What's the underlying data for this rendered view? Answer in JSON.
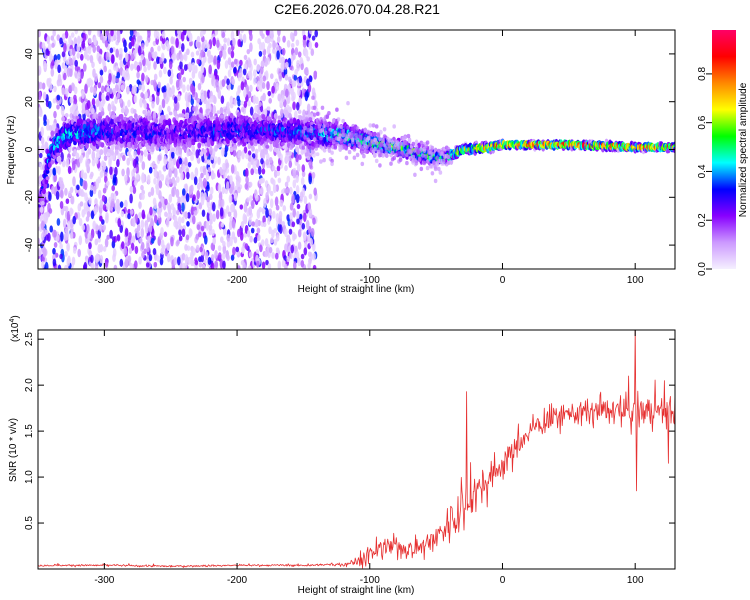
{
  "title": "C2E6.2026.070.04.28.R21",
  "chart_data": [
    {
      "type": "heatmap",
      "name": "spectrogram",
      "xlabel": "Height of straight line (km)",
      "ylabel": "Frequency (Hz)",
      "xlim": [
        -350,
        130
      ],
      "ylim": [
        -50,
        50
      ],
      "x_ticks": [
        -300,
        -200,
        -100,
        0,
        100
      ],
      "x_tick_labels": [
        "-300",
        "-200",
        "-100",
        "0",
        "100"
      ],
      "y_ticks": [
        -40,
        -20,
        0,
        20,
        40
      ],
      "y_tick_labels": [
        "-40",
        "-20",
        "0",
        "20",
        "40"
      ],
      "ridge": {
        "x": [
          -350,
          -340,
          -330,
          -300,
          -250,
          -200,
          -150,
          -120,
          -100,
          -80,
          -60,
          -45,
          -30,
          -10,
          0,
          50,
          100,
          130
        ],
        "center_hz": [
          -25,
          0,
          6,
          8,
          7,
          8,
          7,
          6,
          3,
          1,
          -2,
          -4,
          0,
          1,
          2,
          2,
          1,
          1
        ],
        "spread_hz": [
          8,
          8,
          8,
          9,
          9,
          9,
          8,
          6,
          5,
          4,
          4,
          3,
          2,
          2,
          1.5,
          1.5,
          1.5,
          1.5
        ],
        "peak_amplitude": [
          0.25,
          0.4,
          0.45,
          0.35,
          0.3,
          0.35,
          0.35,
          0.5,
          0.55,
          0.6,
          0.55,
          0.5,
          0.7,
          0.8,
          0.8,
          0.85,
          0.8,
          0.8
        ]
      },
      "background_noise_x_range": [
        -350,
        -140
      ],
      "colorbar": {
        "label": "Normalized spectral amplitude",
        "range": [
          0,
          0.98
        ],
        "ticks": [
          0.0,
          0.2,
          0.4,
          0.6,
          0.8
        ],
        "tick_labels": [
          "0.0",
          "0.2",
          "0.4",
          "0.6",
          "0.8"
        ],
        "colors": [
          "#f5f0ff",
          "#cc99ff",
          "#8800ff",
          "#0000ff",
          "#00ffff",
          "#00ff00",
          "#ffff00",
          "#ff8800",
          "#ff0000",
          "#ff0066"
        ]
      }
    },
    {
      "type": "line",
      "name": "snr",
      "xlabel": "Height of straight line (km)",
      "ylabel": "SNR (10 * v/v)",
      "y_multiplier_label": "(x10",
      "y_multiplier_exp": "4",
      "y_multiplier_close": ")",
      "xlim": [
        -350,
        130
      ],
      "ylim": [
        0,
        2.6
      ],
      "x_ticks": [
        -300,
        -200,
        -100,
        0,
        100
      ],
      "x_tick_labels": [
        "-300",
        "-200",
        "-100",
        "0",
        "100"
      ],
      "y_ticks": [
        0.5,
        1.0,
        1.5,
        2.0,
        2.5
      ],
      "y_tick_labels": [
        "0.5",
        "1.0",
        "1.5",
        "2.0",
        "2.5"
      ],
      "color": "#e63030",
      "series": [
        {
          "name": "SNR",
          "x": [
            -350,
            -300,
            -250,
            -200,
            -150,
            -120,
            -110,
            -100,
            -90,
            -80,
            -70,
            -60,
            -50,
            -40,
            -30,
            -20,
            -10,
            0,
            10,
            20,
            30,
            40,
            50,
            60,
            70,
            80,
            90,
            100,
            110,
            120,
            130
          ],
          "values": [
            0.04,
            0.04,
            0.03,
            0.04,
            0.04,
            0.05,
            0.08,
            0.15,
            0.22,
            0.25,
            0.22,
            0.25,
            0.35,
            0.5,
            0.65,
            0.85,
            1.0,
            1.15,
            1.3,
            1.5,
            1.6,
            1.65,
            1.7,
            1.7,
            1.72,
            1.72,
            1.7,
            1.7,
            1.72,
            1.72,
            1.72
          ],
          "noise": [
            0.01,
            0.01,
            0.01,
            0.01,
            0.01,
            0.02,
            0.05,
            0.09,
            0.1,
            0.1,
            0.1,
            0.12,
            0.15,
            0.18,
            0.22,
            0.2,
            0.18,
            0.15,
            0.14,
            0.12,
            0.12,
            0.12,
            0.12,
            0.13,
            0.13,
            0.14,
            0.15,
            0.15,
            0.15,
            0.15,
            0.15
          ],
          "spikes": [
            {
              "x": -27,
              "value": 1.93
            },
            {
              "x": 100,
              "value": 2.62
            },
            {
              "x": 101,
              "value": 0.85
            },
            {
              "x": 95,
              "value": 2.1
            },
            {
              "x": 125,
              "value": 1.15
            },
            {
              "x": 122,
              "value": 2.05
            }
          ]
        }
      ]
    }
  ]
}
